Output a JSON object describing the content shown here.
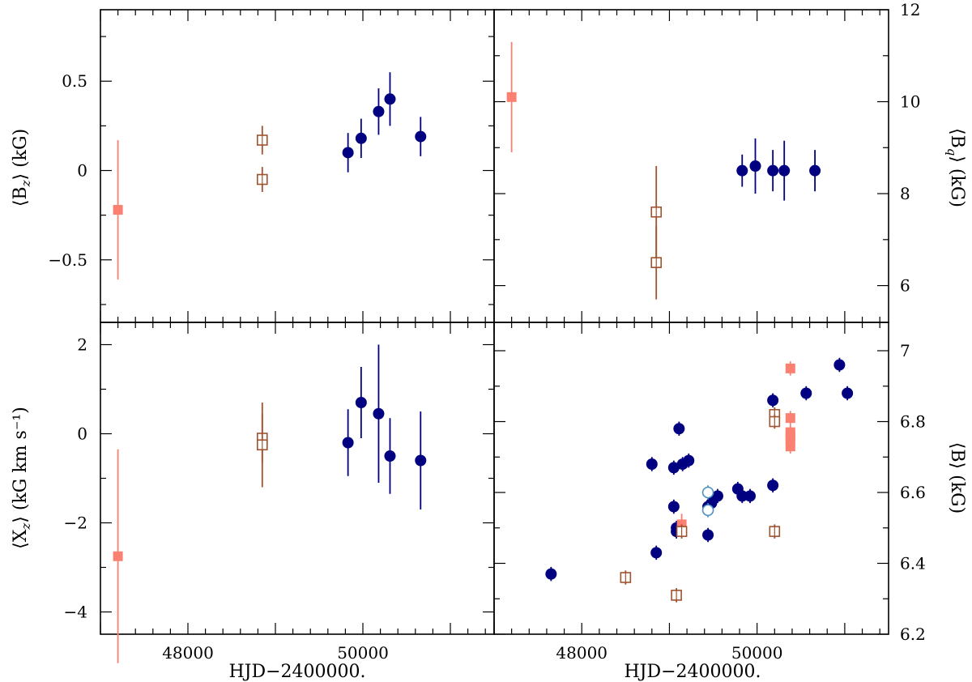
{
  "colors": {
    "dark_blue": "#000080",
    "salmon": "#fa8072",
    "brown": "#a0522d",
    "light_blue": "#4a90c2",
    "frame": "#000000"
  },
  "chart_data": [
    {
      "type": "scatter",
      "panel": "top-left",
      "ylabel": "⟨B_z⟩ (kG)",
      "ylabel_main": "⟨B",
      "ylabel_sub": "z",
      "ylabel_rest": "⟩ (kG)",
      "xlabel": "",
      "xlim": [
        47000,
        51500
      ],
      "ylim": [
        -0.85,
        0.9
      ],
      "yticks": [
        -0.5,
        0,
        0.5
      ],
      "ytick_labels": [
        "−0.5",
        "0",
        "0.5"
      ],
      "series": [
        {
          "name": "salmon-filled-square",
          "marker": "filled-square",
          "color": "salmon",
          "points": [
            [
              47200,
              -0.22,
              0.39
            ]
          ]
        },
        {
          "name": "brown-open-square",
          "marker": "open-square",
          "color": "brown",
          "points": [
            [
              48850,
              0.17,
              0.08
            ],
            [
              48850,
              -0.05,
              0.07
            ]
          ]
        },
        {
          "name": "dark-blue-filled-circle",
          "marker": "filled-circle",
          "color": "dark_blue",
          "points": [
            [
              49830,
              0.1,
              0.11
            ],
            [
              49980,
              0.18,
              0.11
            ],
            [
              50180,
              0.33,
              0.13
            ],
            [
              50310,
              0.4,
              0.15
            ],
            [
              50660,
              0.19,
              0.11
            ]
          ]
        }
      ]
    },
    {
      "type": "scatter",
      "panel": "top-right",
      "ylabel": "⟨B_q⟩ (kG)",
      "ylabel_main": "⟨B",
      "ylabel_sub": "q",
      "ylabel_rest": "⟩ (kG)",
      "xlabel": "",
      "xlim": [
        47000,
        51500
      ],
      "ylim": [
        5.2,
        12
      ],
      "yticks": [
        6,
        8,
        10,
        12
      ],
      "ytick_labels": [
        "6",
        "8",
        "10",
        "12"
      ],
      "series": [
        {
          "name": "salmon-filled-square",
          "marker": "filled-square",
          "color": "salmon",
          "points": [
            [
              47200,
              10.1,
              1.2
            ]
          ]
        },
        {
          "name": "brown-open-square",
          "marker": "open-square",
          "color": "brown",
          "points": [
            [
              48850,
              7.6,
              1.0
            ],
            [
              48850,
              6.5,
              0.8
            ]
          ]
        },
        {
          "name": "dark-blue-filled-circle",
          "marker": "filled-circle",
          "color": "dark_blue",
          "points": [
            [
              49830,
              8.5,
              0.35
            ],
            [
              49980,
              8.6,
              0.6
            ],
            [
              50180,
              8.5,
              0.45
            ],
            [
              50310,
              8.5,
              0.65
            ],
            [
              50660,
              8.5,
              0.45
            ]
          ]
        }
      ]
    },
    {
      "type": "scatter",
      "panel": "bottom-left",
      "ylabel": "⟨X_z⟩ (kG km s⁻¹)",
      "ylabel_main": "⟨X",
      "ylabel_sub": "z",
      "ylabel_rest": "⟩ (kG km s⁻¹)",
      "xlabel": "HJD−2400000.",
      "xlim": [
        47000,
        51500
      ],
      "ylim": [
        -4.5,
        2.5
      ],
      "yticks": [
        -4,
        -2,
        0,
        2
      ],
      "ytick_labels": [
        "−4",
        "−2",
        "0",
        "2"
      ],
      "xticks": [
        48000,
        50000
      ],
      "xtick_labels": [
        "48000",
        "50000"
      ],
      "series": [
        {
          "name": "salmon-filled-square",
          "marker": "filled-square",
          "color": "salmon",
          "points": [
            [
              47200,
              -2.75,
              2.4
            ]
          ]
        },
        {
          "name": "brown-open-square",
          "marker": "open-square",
          "color": "brown",
          "points": [
            [
              48850,
              -0.1,
              0.55
            ],
            [
              48850,
              -0.25,
              0.95
            ]
          ]
        },
        {
          "name": "dark-blue-filled-circle",
          "marker": "filled-circle",
          "color": "dark_blue",
          "points": [
            [
              49830,
              -0.2,
              0.75
            ],
            [
              49980,
              0.7,
              0.8
            ],
            [
              50180,
              0.45,
              1.55
            ],
            [
              50310,
              -0.5,
              0.85
            ],
            [
              50660,
              -0.6,
              1.1
            ]
          ]
        }
      ]
    },
    {
      "type": "scatter",
      "panel": "bottom-right",
      "ylabel": "⟨B⟩ (kG)",
      "ylabel_main": "⟨B",
      "ylabel_sub": "",
      "ylabel_rest": "⟩ (kG)",
      "xlabel": "HJD−2400000.",
      "xlim": [
        47000,
        51500
      ],
      "ylim": [
        6.2,
        7.08
      ],
      "yticks": [
        6.2,
        6.4,
        6.6,
        6.8,
        7.0
      ],
      "ytick_labels": [
        "6.2",
        "6.4",
        "6.6",
        "6.8",
        "7"
      ],
      "xticks": [
        48000,
        50000
      ],
      "xtick_labels": [
        "48000",
        "50000"
      ],
      "series": [
        {
          "name": "dark-blue-filled-circle",
          "marker": "filled-circle",
          "color": "dark_blue",
          "points": [
            [
              47650,
              6.37,
              0.02
            ],
            [
              48800,
              6.68,
              0.02
            ],
            [
              48850,
              6.43,
              0.02
            ],
            [
              49050,
              6.67,
              0.02
            ],
            [
              49050,
              6.56,
              0.02
            ],
            [
              49080,
              6.5,
              0.02
            ],
            [
              49080,
              6.49,
              0.02
            ],
            [
              49110,
              6.78,
              0.02
            ],
            [
              49150,
              6.68,
              0.02
            ],
            [
              49220,
              6.69,
              0.02
            ],
            [
              49440,
              6.48,
              0.02
            ],
            [
              49440,
              6.56,
              0.02
            ],
            [
              49480,
              6.57,
              0.02
            ],
            [
              49550,
              6.59,
              0.02
            ],
            [
              49780,
              6.61,
              0.02
            ],
            [
              49830,
              6.59,
              0.02
            ],
            [
              49920,
              6.59,
              0.02
            ],
            [
              50180,
              6.62,
              0.02
            ],
            [
              50180,
              6.86,
              0.02
            ],
            [
              50560,
              6.88,
              0.02
            ],
            [
              50940,
              6.96,
              0.02
            ],
            [
              51030,
              6.88,
              0.02
            ]
          ]
        },
        {
          "name": "salmon-filled-square",
          "marker": "filled-square",
          "color": "salmon",
          "points": [
            [
              49140,
              6.51,
              0.03
            ],
            [
              50380,
              6.95,
              0.02
            ],
            [
              50380,
              6.81,
              0.02
            ],
            [
              50380,
              6.77,
              0.02
            ],
            [
              50380,
              6.76,
              0.02
            ],
            [
              50380,
              6.75,
              0.02
            ],
            [
              50380,
              6.73,
              0.02
            ]
          ]
        },
        {
          "name": "brown-open-square",
          "marker": "open-square",
          "color": "brown",
          "points": [
            [
              48500,
              6.36,
              0.02
            ],
            [
              49080,
              6.31,
              0.02
            ],
            [
              49140,
              6.49,
              0.02
            ],
            [
              50200,
              6.82,
              0.02
            ],
            [
              50200,
              6.8,
              0.02
            ],
            [
              50200,
              6.49,
              0.02
            ]
          ]
        },
        {
          "name": "light-blue-open-circle",
          "marker": "open-circle",
          "color": "light_blue",
          "points": [
            [
              49440,
              6.6,
              0.02
            ],
            [
              49440,
              6.55,
              0.02
            ]
          ]
        }
      ]
    }
  ]
}
